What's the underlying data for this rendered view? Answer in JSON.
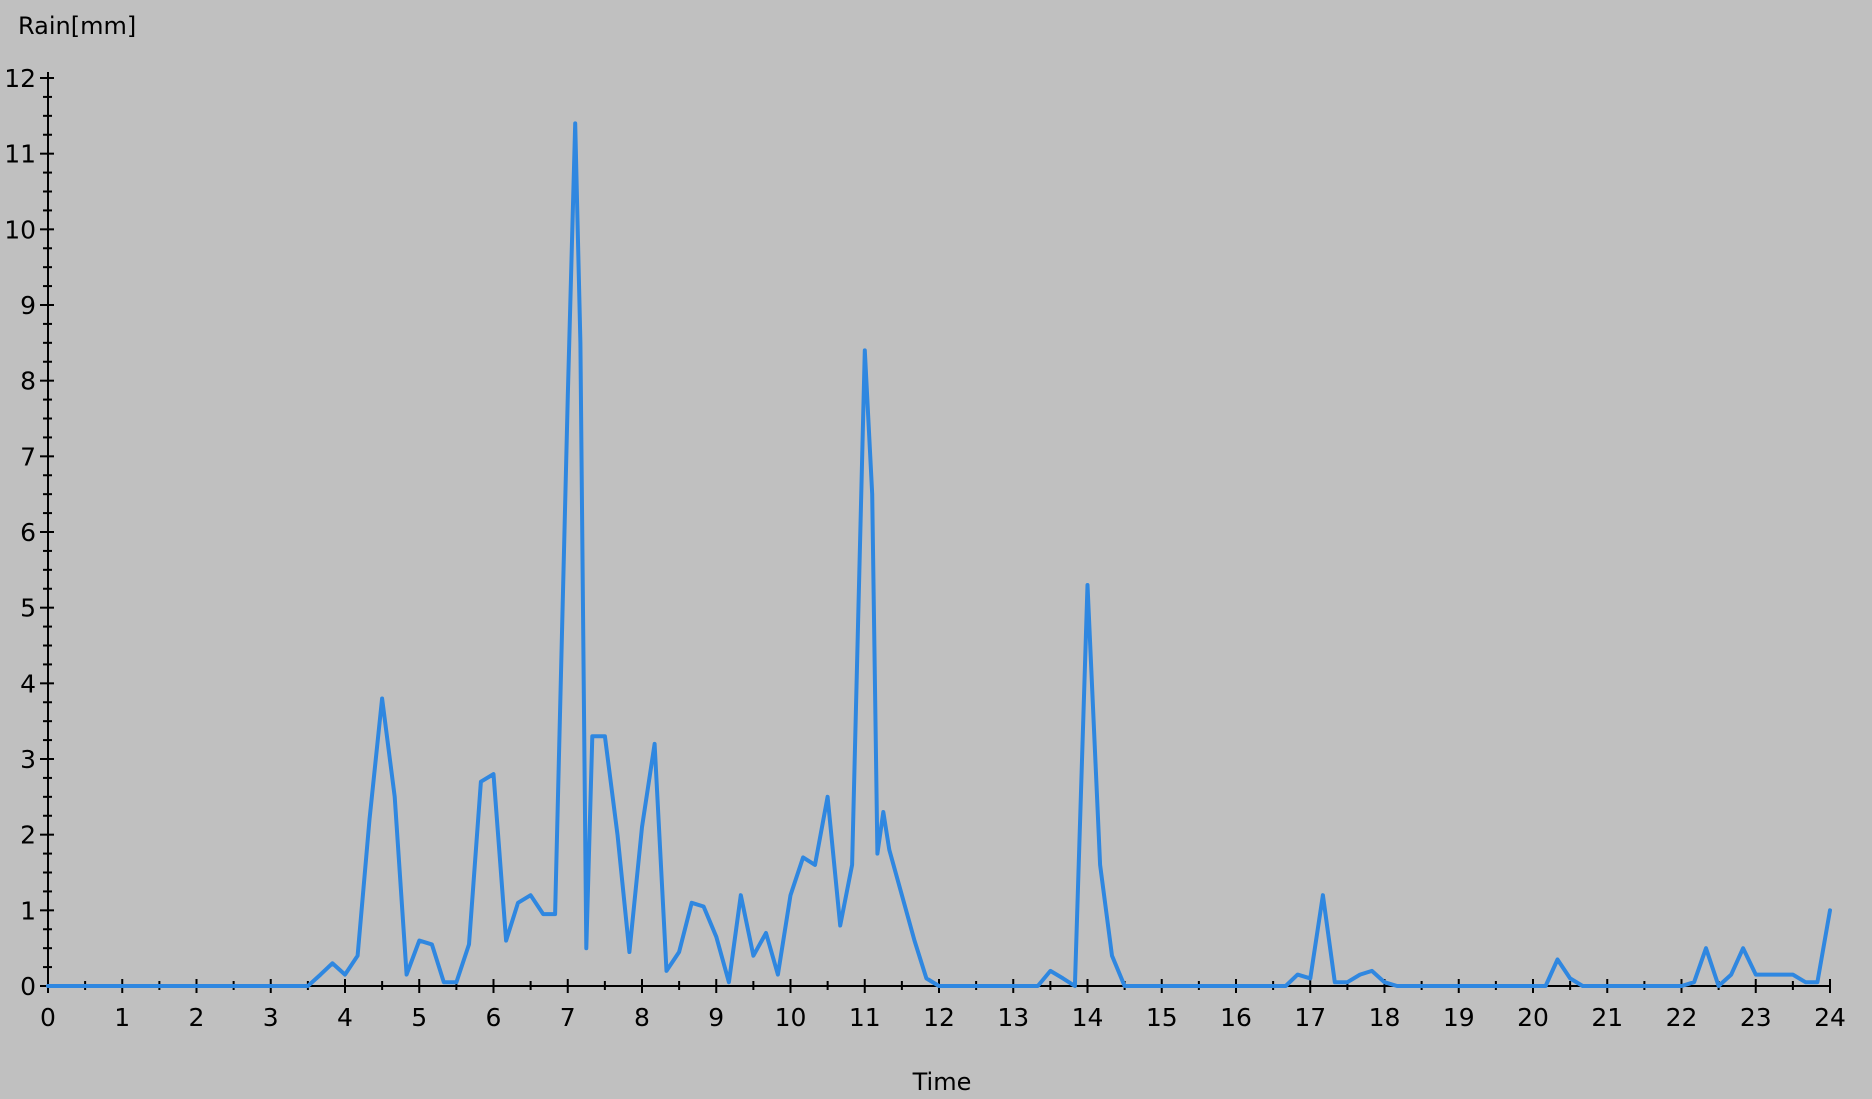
{
  "chart_data": {
    "type": "line",
    "title": "",
    "xlabel": "Time",
    "ylabel": "Rain[mm]",
    "xlim": [
      0,
      24
    ],
    "ylim": [
      0,
      12
    ],
    "x_ticks": [
      "0",
      "1",
      "2",
      "3",
      "4",
      "5",
      "6",
      "7",
      "8",
      "9",
      "10",
      "11",
      "12",
      "13",
      "14",
      "15",
      "16",
      "17",
      "18",
      "19",
      "20",
      "21",
      "22",
      "23",
      "24"
    ],
    "y_ticks": [
      "0",
      "1",
      "2",
      "3",
      "4",
      "5",
      "6",
      "7",
      "8",
      "9",
      "10",
      "11",
      "12"
    ],
    "grid": false,
    "legend": "none",
    "colors": {
      "background": "#c0c0c0",
      "line": "#2f87e0",
      "axis": "#000000"
    },
    "series": [
      {
        "x": [
          0,
          3.5,
          3.67,
          3.83,
          4,
          4.17,
          4.33,
          4.5,
          4.67,
          4.83,
          5,
          5.17,
          5.33,
          5.5,
          5.67,
          5.83,
          6,
          6.17,
          6.33,
          6.5,
          6.67,
          6.83,
          7,
          7.1,
          7.17,
          7.25,
          7.33,
          7.5,
          7.67,
          7.83,
          8,
          8.17,
          8.33,
          8.5,
          8.67,
          8.83,
          9,
          9.17,
          9.33,
          9.5,
          9.67,
          9.83,
          10,
          10.17,
          10.33,
          10.5,
          10.67,
          10.83,
          11,
          11.1,
          11.17,
          11.25,
          11.33,
          11.5,
          11.67,
          11.83,
          12,
          12.17,
          13.33,
          13.5,
          13.67,
          13.83,
          14,
          14.17,
          14.33,
          14.5,
          16.67,
          16.83,
          17,
          17.17,
          17.33,
          17.5,
          17.67,
          17.83,
          18,
          18.17,
          20.17,
          20.33,
          20.5,
          20.67,
          22,
          22.17,
          22.33,
          22.5,
          22.67,
          22.83,
          23,
          23.17,
          23.33,
          23.5,
          23.67,
          23.83,
          24
        ],
        "values": [
          0,
          0,
          0.15,
          0.3,
          0.15,
          0.4,
          2.2,
          3.8,
          2.5,
          0.15,
          0.6,
          0.55,
          0.05,
          0.05,
          0.55,
          2.7,
          2.8,
          0.6,
          1.1,
          1.2,
          0.95,
          0.95,
          7.8,
          11.4,
          8.5,
          0.5,
          3.3,
          3.3,
          2.0,
          0.45,
          2.1,
          3.2,
          0.2,
          0.45,
          1.1,
          1.05,
          0.65,
          0.05,
          1.2,
          0.4,
          0.7,
          0.15,
          1.2,
          1.7,
          1.6,
          2.5,
          0.8,
          1.6,
          8.4,
          6.5,
          1.75,
          2.3,
          1.8,
          1.2,
          0.6,
          0.1,
          0.0,
          0,
          0,
          0.2,
          0.1,
          0,
          5.3,
          1.6,
          0.4,
          0,
          0,
          0.15,
          0.1,
          1.2,
          0.05,
          0.05,
          0.15,
          0.2,
          0.05,
          0,
          0,
          0.35,
          0.1,
          0,
          0,
          0.05,
          0.5,
          0,
          0.15,
          0.5,
          0.15,
          0.15,
          0.15,
          0.15,
          0.05,
          0.05,
          1.0
        ]
      }
    ]
  }
}
